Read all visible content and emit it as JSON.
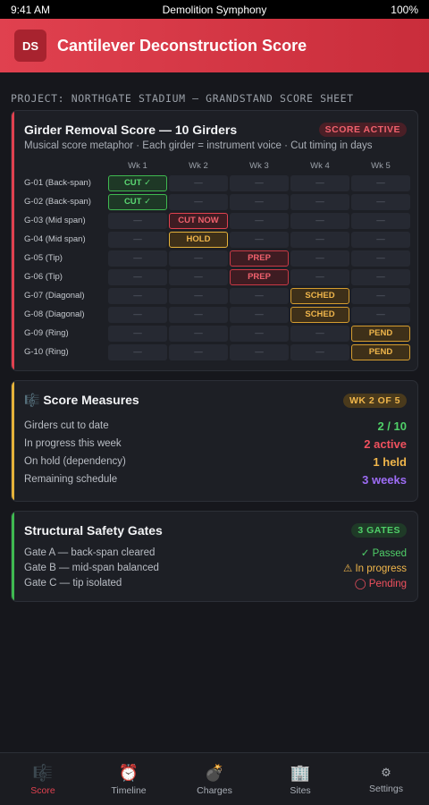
{
  "status_bar": {
    "time": "9:41 AM",
    "title": "Demolition Symphony",
    "battery": "100%"
  },
  "header": {
    "logo": "DS",
    "title": "Cantilever Deconstruction Score"
  },
  "section_title": "PROJECT: NORTHGATE STADIUM — GRANDSTAND SCORE SHEET",
  "score_card": {
    "title": "Girder Removal Score — 10 Girders",
    "badge": "SCORE ACTIVE",
    "subtitle": "Musical score metaphor · Each girder = instrument voice · Cut timing in days",
    "weeks": [
      "Wk 1",
      "Wk 2",
      "Wk 3",
      "Wk 4",
      "Wk 5"
    ],
    "rows": [
      {
        "label": "G-01 (Back-span)",
        "cells": [
          {
            "text": "CUT ✓",
            "state": "cut"
          },
          {
            "text": "—",
            "state": "empty"
          },
          {
            "text": "—",
            "state": "empty"
          },
          {
            "text": "—",
            "state": "empty"
          },
          {
            "text": "—",
            "state": "empty"
          }
        ]
      },
      {
        "label": "G-02 (Back-span)",
        "cells": [
          {
            "text": "CUT ✓",
            "state": "cut"
          },
          {
            "text": "—",
            "state": "empty"
          },
          {
            "text": "—",
            "state": "empty"
          },
          {
            "text": "—",
            "state": "empty"
          },
          {
            "text": "—",
            "state": "empty"
          }
        ]
      },
      {
        "label": "G-03 (Mid span)",
        "cells": [
          {
            "text": "—",
            "state": "empty"
          },
          {
            "text": "CUT NOW",
            "state": "cutnow"
          },
          {
            "text": "—",
            "state": "empty"
          },
          {
            "text": "—",
            "state": "empty"
          },
          {
            "text": "—",
            "state": "empty"
          }
        ]
      },
      {
        "label": "G-04 (Mid span)",
        "cells": [
          {
            "text": "—",
            "state": "empty"
          },
          {
            "text": "HOLD",
            "state": "hold"
          },
          {
            "text": "—",
            "state": "empty"
          },
          {
            "text": "—",
            "state": "empty"
          },
          {
            "text": "—",
            "state": "empty"
          }
        ]
      },
      {
        "label": "G-05 (Tip)",
        "cells": [
          {
            "text": "—",
            "state": "empty"
          },
          {
            "text": "—",
            "state": "empty"
          },
          {
            "text": "PREP",
            "state": "prep"
          },
          {
            "text": "—",
            "state": "empty"
          },
          {
            "text": "—",
            "state": "empty"
          }
        ]
      },
      {
        "label": "G-06 (Tip)",
        "cells": [
          {
            "text": "—",
            "state": "empty"
          },
          {
            "text": "—",
            "state": "empty"
          },
          {
            "text": "PREP",
            "state": "prep"
          },
          {
            "text": "—",
            "state": "empty"
          },
          {
            "text": "—",
            "state": "empty"
          }
        ]
      },
      {
        "label": "G-07 (Diagonal)",
        "cells": [
          {
            "text": "—",
            "state": "empty"
          },
          {
            "text": "—",
            "state": "empty"
          },
          {
            "text": "—",
            "state": "empty"
          },
          {
            "text": "SCHED",
            "state": "sched"
          },
          {
            "text": "—",
            "state": "empty"
          }
        ]
      },
      {
        "label": "G-08 (Diagonal)",
        "cells": [
          {
            "text": "—",
            "state": "empty"
          },
          {
            "text": "—",
            "state": "empty"
          },
          {
            "text": "—",
            "state": "empty"
          },
          {
            "text": "SCHED",
            "state": "sched"
          },
          {
            "text": "—",
            "state": "empty"
          }
        ]
      },
      {
        "label": "G-09 (Ring)",
        "cells": [
          {
            "text": "—",
            "state": "empty"
          },
          {
            "text": "—",
            "state": "empty"
          },
          {
            "text": "—",
            "state": "empty"
          },
          {
            "text": "—",
            "state": "empty"
          },
          {
            "text": "PEND",
            "state": "pend"
          }
        ]
      },
      {
        "label": "G-10 (Ring)",
        "cells": [
          {
            "text": "—",
            "state": "empty"
          },
          {
            "text": "—",
            "state": "empty"
          },
          {
            "text": "—",
            "state": "empty"
          },
          {
            "text": "—",
            "state": "empty"
          },
          {
            "text": "PEND",
            "state": "pend"
          }
        ]
      }
    ]
  },
  "measures_card": {
    "icon": "🎼",
    "title": "Score Measures",
    "badge": "WK 2 OF 5",
    "items": [
      {
        "label": "Girders cut to date",
        "value": "2 / 10",
        "color": "green"
      },
      {
        "label": "In progress this week",
        "value": "2 active",
        "color": "red"
      },
      {
        "label": "On hold (dependency)",
        "value": "1 held",
        "color": "amber"
      },
      {
        "label": "Remaining schedule",
        "value": "3 weeks",
        "color": "purple"
      }
    ]
  },
  "gates_card": {
    "title": "Structural Safety Gates",
    "badge": "3 GATES",
    "items": [
      {
        "label": "Gate A — back-span cleared",
        "status": "✓ Passed",
        "color": "#4fcf68"
      },
      {
        "label": "Gate B — mid-span balanced",
        "status": "⚠ In progress",
        "color": "#f0b64b"
      },
      {
        "label": "Gate C — tip isolated",
        "status": "◯ Pending",
        "color": "#f0515e"
      }
    ]
  },
  "nav": [
    {
      "name": "score",
      "icon": "🎼",
      "label": "Score",
      "active": true
    },
    {
      "name": "timeline",
      "icon": "⏰",
      "label": "Timeline",
      "active": false
    },
    {
      "name": "charges",
      "icon": "💣",
      "label": "Charges",
      "active": false
    },
    {
      "name": "sites",
      "icon": "🏢",
      "label": "Sites",
      "active": false
    },
    {
      "name": "settings",
      "icon": "⚙",
      "label": "Settings",
      "active": false
    }
  ]
}
